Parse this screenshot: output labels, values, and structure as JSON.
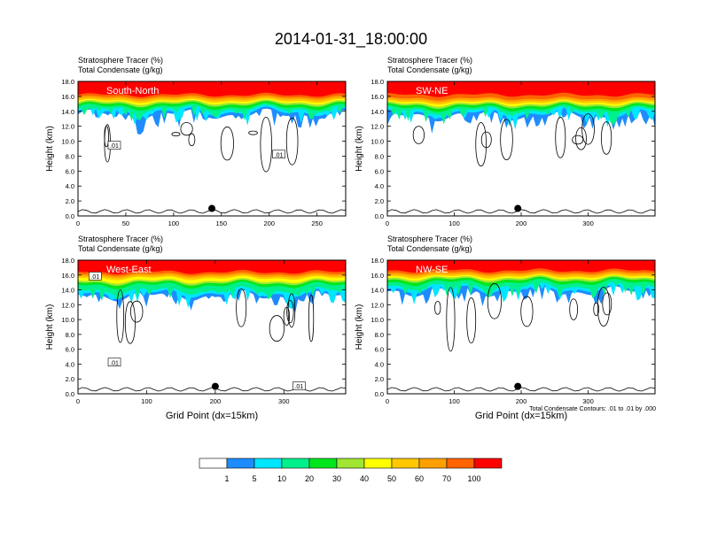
{
  "main_title": "2014-01-31_18:00:00",
  "footer_note": "Total Condensate Contours: .01 to .01 by .000",
  "colors": {
    "frame": "#000000",
    "contour": "#000000",
    "marker": "#000000"
  },
  "colorbar": {
    "levels": [
      1,
      5,
      10,
      20,
      30,
      40,
      50,
      60,
      70,
      100
    ],
    "level_labels": [
      "1",
      "5",
      "10",
      "20",
      "30",
      "40",
      "50",
      "60",
      "70",
      "100"
    ],
    "colors": [
      "#ffffff",
      "#1e8cff",
      "#00e6ff",
      "#00f08c",
      "#00e61e",
      "#a0e632",
      "#ffff00",
      "#ffc800",
      "#ffa000",
      "#ff6400",
      "#ff0000"
    ]
  },
  "chart_data": [
    {
      "type": "heatmap",
      "panel_label": "South-North",
      "title_line1": "Stratosphere Tracer   (%)",
      "title_line2": "Total Condensate   (g/kg)",
      "ylabel": "Height (km)",
      "xlabel": "",
      "xlim": [
        0,
        280
      ],
      "ylim": [
        0,
        18
      ],
      "x_ticks": [
        0,
        50,
        100,
        150,
        200,
        250
      ],
      "y_ticks": [
        "0.0",
        "2.0",
        "4.0",
        "6.0",
        "8.0",
        "10.0",
        "12.0",
        "14.0",
        "16.0",
        "18.0"
      ],
      "tracer_levels": {
        "top_red_km": 16.2,
        "orange_km": 15.4,
        "green_km": 14.6,
        "blue_base_km": 13.6
      },
      "marker": {
        "x": 140,
        "y": 1.0
      },
      "contour_labels": [
        {
          "text": ".01",
          "x": 38,
          "y": 9.4
        },
        {
          "text": ".01",
          "x": 210,
          "y": 8.2
        }
      ],
      "grid": false
    },
    {
      "type": "heatmap",
      "panel_label": "SW-NE",
      "title_line1": "Stratosphere Tracer   (%)",
      "title_line2": "Total Condensate   (g/kg)",
      "ylabel": "Height (km)",
      "xlabel": "",
      "xlim": [
        0,
        400
      ],
      "ylim": [
        0,
        18
      ],
      "x_ticks": [
        0,
        100,
        200,
        300
      ],
      "y_ticks": [
        "0.0",
        "2.0",
        "4.0",
        "6.0",
        "8.0",
        "10.0",
        "12.0",
        "14.0",
        "16.0",
        "18.0"
      ],
      "tracer_levels": {
        "top_red_km": 16.2,
        "orange_km": 15.2,
        "green_km": 14.4,
        "blue_base_km": 13.4
      },
      "marker": {
        "x": 195,
        "y": 1.0
      },
      "contour_labels": [],
      "grid": false
    },
    {
      "type": "heatmap",
      "panel_label": "West-East",
      "title_line1": "Stratosphere Tracer   (%)",
      "title_line2": "Total Condensate   (g/kg)",
      "ylabel": "Height (km)",
      "xlabel": "Grid Point (dx=15km)",
      "xlim": [
        0,
        390
      ],
      "ylim": [
        0,
        18
      ],
      "x_ticks": [
        0,
        100,
        200,
        300
      ],
      "y_ticks": [
        "0.0",
        "2.0",
        "4.0",
        "6.0",
        "8.0",
        "10.0",
        "12.0",
        "14.0",
        "16.0",
        "18.0"
      ],
      "tracer_levels": {
        "top_red_km": 16.4,
        "orange_km": 15.6,
        "green_km": 14.6,
        "blue_base_km": 13.2
      },
      "marker": {
        "x": 200,
        "y": 1.0
      },
      "contour_labels": [
        {
          "text": ".01",
          "x": 25,
          "y": 15.8
        },
        {
          "text": ".01",
          "x": 53,
          "y": 4.2
        },
        {
          "text": ".01",
          "x": 322,
          "y": 1.0
        }
      ],
      "grid": false
    },
    {
      "type": "heatmap",
      "panel_label": "NW-SE",
      "title_line1": "Stratosphere Tracer   (%)",
      "title_line2": "Total Condensate   (g/kg)",
      "ylabel": "Height (km)",
      "xlabel": "Grid Point (dx=15km)",
      "xlim": [
        0,
        400
      ],
      "ylim": [
        0,
        18
      ],
      "x_ticks": [
        0,
        100,
        200,
        300
      ],
      "y_ticks": [
        "0.0",
        "2.0",
        "4.0",
        "6.0",
        "8.0",
        "10.0",
        "12.0",
        "14.0",
        "16.0",
        "18.0"
      ],
      "tracer_levels": {
        "top_red_km": 16.6,
        "orange_km": 15.8,
        "green_km": 15.0,
        "blue_base_km": 13.8
      },
      "marker": {
        "x": 195,
        "y": 1.0
      },
      "contour_labels": [],
      "grid": false
    }
  ]
}
